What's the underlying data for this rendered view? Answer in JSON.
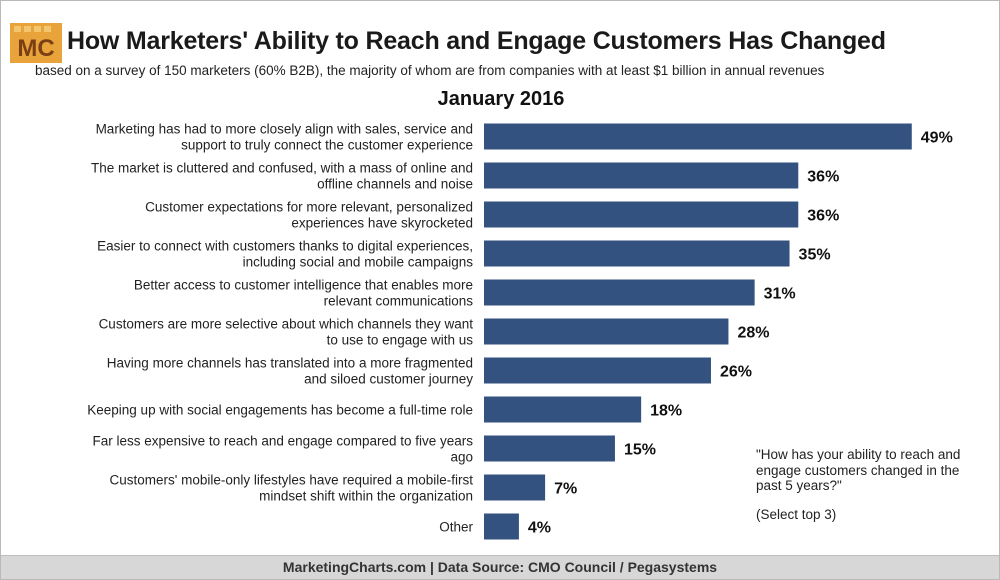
{
  "logo_text": "MC",
  "colors": {
    "bar": "#34527f",
    "logo_bg": "#e8a33a",
    "logo_text": "#7a3f14",
    "footer_bg": "#d7d7d7"
  },
  "header": {
    "title": "How Marketers' Ability to Reach and Engage Customers Has Changed",
    "subtitle": "based on a survey of 150 marketers (60% B2B), the majority of whom are from companies with at least $1 billion in annual revenues",
    "period": "January 2016"
  },
  "note": {
    "question": "\"How has your ability to reach and engage customers changed in the past 5 years?\"",
    "select": "(Select top 3)"
  },
  "footer": "MarketingCharts.com | Data Source: CMO Council / Pegasystems",
  "chart_data": {
    "type": "bar",
    "orientation": "horizontal",
    "categories": [
      [
        "Marketing has had to more closely align with sales, service and",
        "support to truly connect the customer experience"
      ],
      [
        "The market is cluttered and confused, with a mass of online and",
        "offline channels and noise"
      ],
      [
        "Customer expectations for more relevant, personalized",
        "experiences have skyrocketed"
      ],
      [
        "Easier to connect with customers thanks to digital experiences,",
        "including social and mobile campaigns"
      ],
      [
        "Better access to customer intelligence that enables more",
        "relevant communications"
      ],
      [
        "Customers are more selective about which channels they want",
        "to use to engage with us"
      ],
      [
        "Having more channels has translated into a more fragmented",
        "and siloed customer journey"
      ],
      [
        "Keeping up with social engagements has become a full-time role"
      ],
      [
        "Far less expensive to reach and engage compared to five years",
        "ago"
      ],
      [
        "Customers' mobile-only lifestyles have required a mobile-first",
        "mindset shift within the organization"
      ],
      [
        "Other"
      ]
    ],
    "values": [
      49,
      36,
      36,
      35,
      31,
      28,
      26,
      18,
      15,
      7,
      4
    ],
    "value_labels": [
      "49%",
      "36%",
      "36%",
      "35%",
      "31%",
      "28%",
      "26%",
      "18%",
      "15%",
      "7%",
      "4%"
    ],
    "grid": false,
    "legend": "none"
  }
}
